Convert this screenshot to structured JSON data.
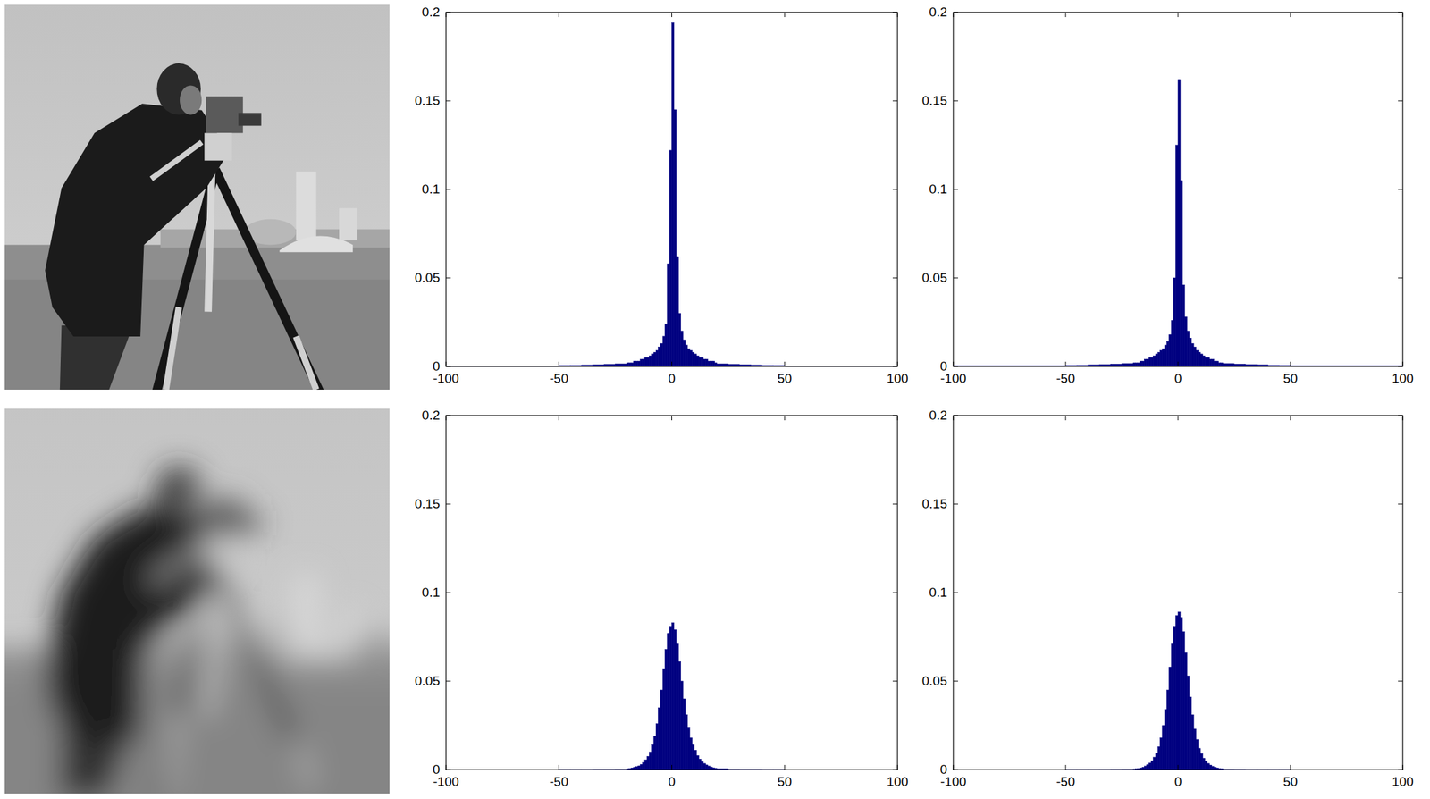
{
  "chart_data": [
    {
      "type": "histogram",
      "bins": [
        -100,
        -50,
        -45,
        -40,
        -35,
        -30,
        -25,
        -20,
        -19,
        -18,
        -17,
        -16,
        -15,
        -14,
        -13,
        -12,
        -11,
        -10,
        -9,
        -8,
        -7,
        -6,
        -5,
        -4,
        -3,
        -2,
        -1,
        0,
        1,
        2,
        3,
        4,
        5,
        6,
        7,
        8,
        9,
        10,
        11,
        12,
        13,
        14,
        15,
        16,
        17,
        18,
        19,
        20,
        25,
        30,
        35,
        40,
        45,
        50,
        100
      ],
      "values": [
        0.0003,
        0.0005,
        0.0006,
        0.0008,
        0.001,
        0.0012,
        0.0015,
        0.002,
        0.002,
        0.002,
        0.003,
        0.003,
        0.003,
        0.004,
        0.004,
        0.005,
        0.005,
        0.006,
        0.007,
        0.008,
        0.009,
        0.011,
        0.013,
        0.017,
        0.024,
        0.058,
        0.122,
        0.194,
        0.145,
        0.062,
        0.03,
        0.02,
        0.015,
        0.012,
        0.01,
        0.009,
        0.008,
        0.007,
        0.006,
        0.005,
        0.005,
        0.004,
        0.004,
        0.003,
        0.003,
        0.003,
        0.002,
        0.0015,
        0.0012,
        0.001,
        0.0008,
        0.0006,
        0.0005,
        0.0003
      ],
      "color": "#000080",
      "xlim": [
        -100,
        100
      ],
      "ylim": [
        0,
        0.2
      ],
      "xticks": [
        -100,
        -50,
        0,
        50,
        100
      ],
      "yticks": [
        0,
        0.05,
        0.1,
        0.15,
        0.2
      ]
    },
    {
      "type": "histogram",
      "bins": [
        -100,
        -50,
        -45,
        -40,
        -35,
        -30,
        -25,
        -20,
        -19,
        -18,
        -17,
        -16,
        -15,
        -14,
        -13,
        -12,
        -11,
        -10,
        -9,
        -8,
        -7,
        -6,
        -5,
        -4,
        -3,
        -2,
        -1,
        0,
        1,
        2,
        3,
        4,
        5,
        6,
        7,
        8,
        9,
        10,
        11,
        12,
        13,
        14,
        15,
        16,
        17,
        18,
        19,
        20,
        25,
        30,
        35,
        40,
        45,
        50,
        100
      ],
      "values": [
        0.0004,
        0.0006,
        0.0007,
        0.0009,
        0.0011,
        0.0013,
        0.0016,
        0.002,
        0.002,
        0.002,
        0.003,
        0.003,
        0.004,
        0.004,
        0.005,
        0.005,
        0.006,
        0.007,
        0.008,
        0.009,
        0.01,
        0.012,
        0.014,
        0.018,
        0.026,
        0.05,
        0.125,
        0.162,
        0.105,
        0.046,
        0.028,
        0.02,
        0.016,
        0.013,
        0.011,
        0.009,
        0.008,
        0.007,
        0.006,
        0.005,
        0.005,
        0.004,
        0.004,
        0.003,
        0.003,
        0.002,
        0.002,
        0.0016,
        0.0013,
        0.0011,
        0.0009,
        0.0007,
        0.0006,
        0.0004
      ],
      "color": "#000080",
      "xlim": [
        -100,
        100
      ],
      "ylim": [
        0,
        0.2
      ],
      "xticks": [
        -100,
        -50,
        0,
        50,
        100
      ],
      "yticks": [
        0,
        0.05,
        0.1,
        0.15,
        0.2
      ]
    },
    {
      "type": "histogram",
      "bins": [
        -100,
        -50,
        -45,
        -40,
        -35,
        -30,
        -25,
        -20,
        -19,
        -18,
        -17,
        -16,
        -15,
        -14,
        -13,
        -12,
        -11,
        -10,
        -9,
        -8,
        -7,
        -6,
        -5,
        -4,
        -3,
        -2,
        -1,
        0,
        1,
        2,
        3,
        4,
        5,
        6,
        7,
        8,
        9,
        10,
        11,
        12,
        13,
        14,
        15,
        16,
        17,
        18,
        19,
        20,
        25,
        30,
        35,
        40,
        45,
        50,
        100
      ],
      "values": [
        0,
        0.0001,
        0.0001,
        0.0001,
        0.0002,
        0.0002,
        0.0003,
        0.0005,
        0.0007,
        0.001,
        0.0013,
        0.0017,
        0.0022,
        0.003,
        0.004,
        0.0055,
        0.0075,
        0.01,
        0.014,
        0.019,
        0.026,
        0.035,
        0.045,
        0.057,
        0.068,
        0.077,
        0.081,
        0.083,
        0.079,
        0.071,
        0.061,
        0.05,
        0.04,
        0.031,
        0.024,
        0.018,
        0.014,
        0.011,
        0.008,
        0.006,
        0.0045,
        0.0035,
        0.0027,
        0.002,
        0.0015,
        0.0011,
        0.0008,
        0.0005,
        0.0003,
        0.0002,
        0.0002,
        0.0001,
        0.0001,
        0
      ],
      "color": "#000080",
      "xlim": [
        -100,
        100
      ],
      "ylim": [
        0,
        0.2
      ],
      "xticks": [
        -100,
        -50,
        0,
        50,
        100
      ],
      "yticks": [
        0,
        0.05,
        0.1,
        0.15,
        0.2
      ]
    },
    {
      "type": "histogram",
      "bins": [
        -100,
        -50,
        -45,
        -40,
        -35,
        -30,
        -25,
        -20,
        -19,
        -18,
        -17,
        -16,
        -15,
        -14,
        -13,
        -12,
        -11,
        -10,
        -9,
        -8,
        -7,
        -6,
        -5,
        -4,
        -3,
        -2,
        -1,
        0,
        1,
        2,
        3,
        4,
        5,
        6,
        7,
        8,
        9,
        10,
        11,
        12,
        13,
        14,
        15,
        16,
        17,
        18,
        19,
        20,
        25,
        30,
        35,
        40,
        45,
        50,
        100
      ],
      "values": [
        0,
        0.0001,
        0.0001,
        0.0001,
        0.0001,
        0.0002,
        0.0003,
        0.0004,
        0.0005,
        0.0007,
        0.001,
        0.0014,
        0.002,
        0.0028,
        0.0038,
        0.005,
        0.007,
        0.0095,
        0.013,
        0.018,
        0.025,
        0.034,
        0.045,
        0.058,
        0.071,
        0.081,
        0.087,
        0.089,
        0.086,
        0.078,
        0.066,
        0.053,
        0.041,
        0.031,
        0.023,
        0.017,
        0.012,
        0.009,
        0.0065,
        0.0048,
        0.0035,
        0.0026,
        0.0019,
        0.0014,
        0.001,
        0.0007,
        0.0005,
        0.0003,
        0.0002,
        0.0001,
        0.0001,
        0.0001,
        0.0001,
        0
      ],
      "color": "#000080",
      "xlim": [
        -100,
        100
      ],
      "ylim": [
        0,
        0.2
      ],
      "xticks": [
        -100,
        -50,
        0,
        50,
        100
      ],
      "yticks": [
        0,
        0.05,
        0.1,
        0.15,
        0.2
      ]
    }
  ]
}
